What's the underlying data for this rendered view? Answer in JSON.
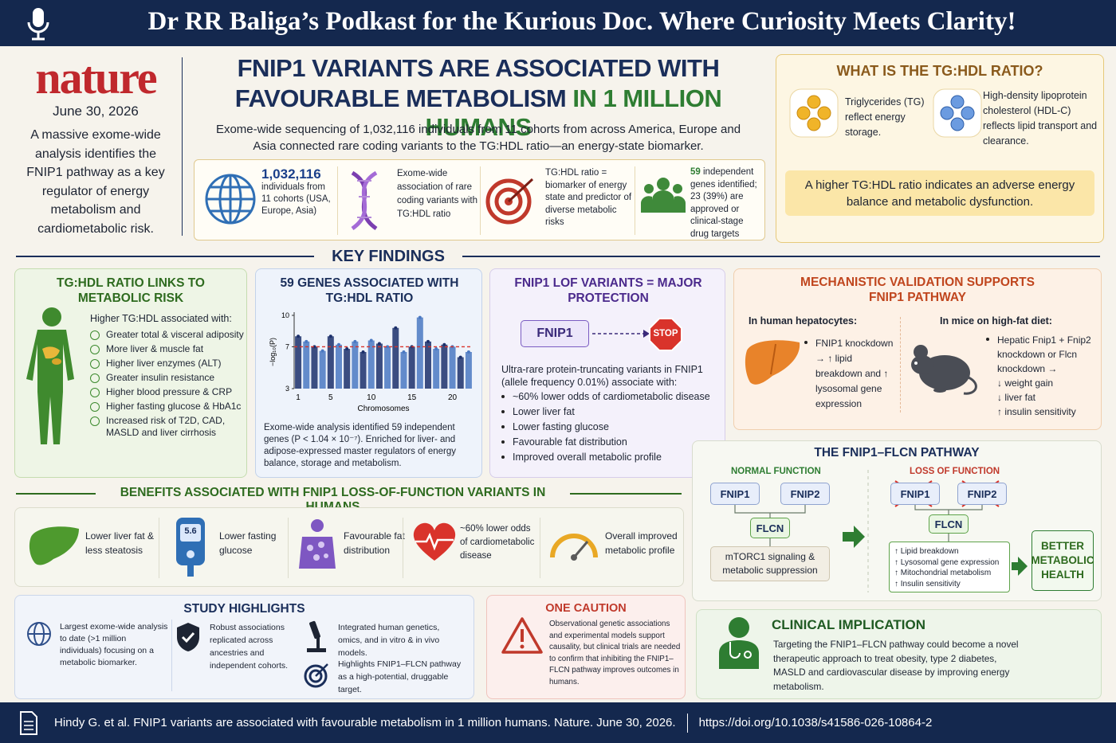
{
  "banner": {
    "title": "Dr RR Baliga’s Podkast for the Kurious Doc. Where Curiosity Meets Clarity!"
  },
  "masthead": {
    "journal": "nature",
    "date": "June 30, 2026",
    "summary": "A massive exome-wide analysis identifies the FNIP1 pathway as a key regulator of energy metabolism and cardiometabolic risk."
  },
  "headline": {
    "line1": "FNIP1 VARIANTS ARE ASSOCIATED WITH",
    "line2a": "FAVOURABLE METABOLISM",
    "line2b": "IN 1 MILLION HUMANS",
    "intro": "Exome-wide sequencing of 1,032,116 individuals from 11 cohorts from across America, Europe and Asia connected rare coding variants to the TG:HDL ratio—an energy-state biomarker."
  },
  "stats": [
    {
      "value": "1,032,116",
      "text": "individuals from 11 cohorts (USA, Europe, Asia)"
    },
    {
      "text": "Exome-wide association of rare coding variants with TG:HDL ratio"
    },
    {
      "text": "TG:HDL ratio = biomarker of energy state and predictor of diverse metabolic risks"
    },
    {
      "value": "59",
      "text": "independent genes identified; 23 (39%) are approved or clinical-stage drug targets"
    }
  ],
  "ratio_box": {
    "title": "WHAT IS THE TG:HDL RATIO?",
    "tg": "Triglycerides (TG) reflect energy storage.",
    "hdl": "High-density lipoprotein cholesterol (HDL-C) reflects lipid transport and clearance.",
    "note": "A higher TG:HDL ratio indicates an adverse energy balance and metabolic dysfunction."
  },
  "key_findings": "KEY FINDINGS",
  "risk": {
    "title": "TG:HDL RATIO LINKS TO METABOLIC RISK",
    "lead": "Higher TG:HDL associated with:",
    "items": [
      "Greater total & visceral adiposity",
      "More liver & muscle fat",
      "Higher liver enzymes (ALT)",
      "Greater insulin resistance",
      "Higher blood pressure & CRP",
      "Higher fasting glucose & HbA1c",
      "Increased risk of T2D, CAD, MASLD and liver cirrhosis"
    ]
  },
  "chart_data": {
    "type": "scatter",
    "title": "59 GENES ASSOCIATED WITH TG:HDL RATIO",
    "y_label": "−log₁₀(P)",
    "x_label": "Chromosomes",
    "x": [
      1,
      2,
      3,
      4,
      5,
      6,
      7,
      8,
      9,
      10,
      11,
      12,
      13,
      14,
      15,
      16,
      17,
      18,
      19,
      20,
      21,
      22
    ],
    "values": [
      8,
      7.5,
      7,
      6.6,
      8,
      7.2,
      6.8,
      7.5,
      6.5,
      7.6,
      7.3,
      7,
      8.8,
      6.5,
      7,
      9.8,
      7.5,
      6.8,
      7.2,
      7,
      6,
      6.5
    ],
    "colors": [
      "#1b2f6b",
      "#4a78c2"
    ],
    "xlim": [
      0.5,
      22.5
    ],
    "ylim": [
      3,
      10
    ],
    "xticks": [
      1,
      5,
      10,
      15,
      20
    ],
    "yticks": [
      3,
      7,
      10
    ],
    "reference_line": 7,
    "reference_color": "#d9332b",
    "caption": "Exome-wide analysis identified 59 independent genes (P < 1.04 × 10⁻⁷). Enriched for liver- and adipose-expressed master regulators of energy balance, storage and metabolism."
  },
  "lof": {
    "title": "FNIP1 LOF VARIANTS = MAJOR PROTECTION",
    "gene": "FNIP1",
    "stop": "STOP",
    "lead": "Ultra-rare protein-truncating variants in FNIP1 (allele frequency 0.01%) associate with:",
    "items": [
      "~60% lower odds of cardiometabolic disease",
      "Lower liver fat",
      "Lower fasting glucose",
      "Favourable fat distribution",
      "Improved overall metabolic profile"
    ]
  },
  "mech": {
    "title": "MECHANISTIC VALIDATION SUPPORTS FNIP1 PATHWAY",
    "hepatocytes": {
      "heading": "In human hepatocytes:",
      "text": "FNIP1 knockdown → ↑ lipid breakdown and ↑ lysosomal gene expression"
    },
    "mice": {
      "heading": "In mice on high-fat diet:",
      "items": [
        "Hepatic Fnip1 + Fnip2 knockdown or Flcn knockdown →",
        "↓ weight gain",
        "↓ liver fat",
        "↑ insulin sensitivity"
      ]
    }
  },
  "pathway": {
    "title": "THE FNIP1–FLCN PATHWAY",
    "normal": {
      "label": "NORMAL FUNCTION",
      "fnip1": "FNIP1",
      "fnip2": "FNIP2",
      "flcn": "FLCN",
      "result": "mTORC1 signaling & metabolic suppression"
    },
    "loss": {
      "label": "LOSS OF FUNCTION",
      "fnip1": "FNIP1",
      "fnip2": "FNIP2",
      "flcn": "FLCN",
      "effects": [
        "↑ Lipid breakdown",
        "↑ Lysosomal gene expression",
        "↑ Mitochondrial metabolism",
        "↑ Insulin sensitivity"
      ]
    },
    "outcome": "BETTER METABOLIC HEALTH"
  },
  "benefits": {
    "title": "BENEFITS ASSOCIATED WITH FNIP1 LOSS-OF-FUNCTION VARIANTS IN HUMANS",
    "glucose_reading": "5.6",
    "items": [
      "Lower liver fat & less steatosis",
      "Lower fasting glucose",
      "Favourable fat distribution",
      "~60% lower odds of cardiometabolic disease",
      "Overall improved metabolic profile"
    ]
  },
  "highlights": {
    "title": "STUDY HIGHLIGHTS",
    "items": [
      "Largest exome-wide analysis to date (>1 million individuals) focusing on a metabolic biomarker.",
      "Robust associations replicated across ancestries and independent cohorts.",
      "Integrated human genetics, omics, and in vitro & in vivo models.",
      "Highlights FNIP1–FLCN pathway as a high-potential, druggable target."
    ]
  },
  "caution": {
    "title": "ONE CAUTION",
    "text": "Observational genetic associations and experimental models support causality, but clinical trials are needed to confirm that inhibiting the FNIP1–FLCN pathway improves outcomes in humans."
  },
  "implication": {
    "title": "CLINICAL IMPLICATION",
    "text": "Targeting the FNIP1–FLCN pathway could become a novel therapeutic approach to treat obesity, type 2 diabetes, MASLD and cardiovascular disease by improving energy metabolism."
  },
  "citation": {
    "text": "Hindy G. et al. FNIP1 variants are associated with favourable metabolism in 1 million humans. Nature. June 30, 2026.",
    "doi": "https://doi.org/10.1038/s41586-026-10864-2"
  }
}
